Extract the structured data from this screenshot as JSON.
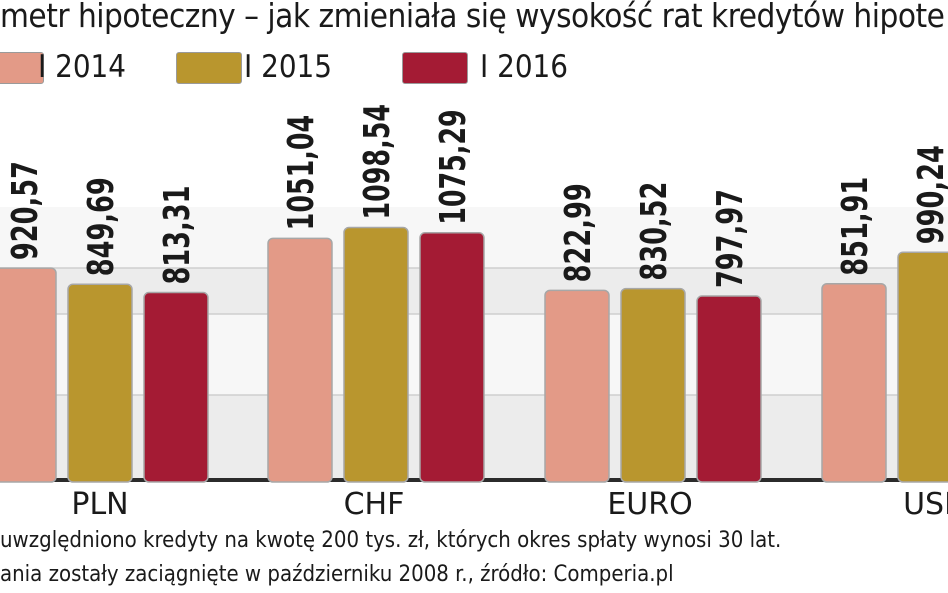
{
  "title": "metr hipoteczny – jak zmieniała się wysokość rat kredytów hipote",
  "legend": [
    {
      "label": "I 2014",
      "color": "#e39a87"
    },
    {
      "label": "I 2015",
      "color": "#b9962e"
    },
    {
      "label": "I 2016",
      "color": "#a41b34"
    }
  ],
  "chart_data": {
    "type": "bar",
    "categories": [
      "PLN",
      "CHF",
      "EURO",
      "USD"
    ],
    "category_labels": [
      "PLN",
      "CHF",
      "EURO",
      "USI"
    ],
    "series": [
      {
        "name": "I 2014",
        "values": [
          920.57,
          1051.04,
          822.99,
          851.91
        ],
        "labels": [
          "920,57",
          "1051,04",
          "822,99",
          "851,91"
        ]
      },
      {
        "name": "I 2015",
        "values": [
          849.69,
          1098.54,
          830.52,
          990.24
        ],
        "labels": [
          "849,69",
          "1098,54",
          "830,52",
          "990,24"
        ]
      },
      {
        "name": "I 2016",
        "values": [
          813.31,
          1075.29,
          797.97,
          null
        ],
        "labels": [
          "813,31",
          "1075,29",
          "797,97",
          ""
        ]
      }
    ],
    "colors": [
      "#e39a87",
      "#b9962e",
      "#a41b34"
    ],
    "grid": true
  },
  "notes": [
    "uwzględniono kredyty na kwotę 200 tys. zł, których okres spłaty wynosi 30 lat.",
    "ania zostały zaciągnięte w październiku 2008 r., źródło: Comperia.pl"
  ]
}
